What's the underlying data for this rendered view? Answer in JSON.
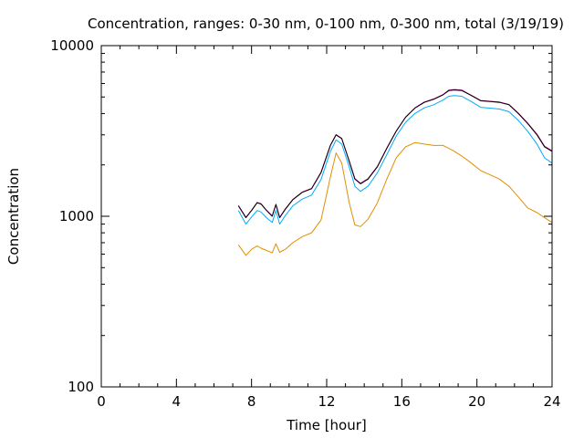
{
  "chart_data": {
    "type": "line",
    "title": "Concentration, ranges: 0-30 nm, 0-100 nm, 0-300 nm, total (3/19/19)",
    "xlabel": "Time [hour]",
    "ylabel": "Concentration",
    "xlim": [
      0,
      24
    ],
    "ylim": [
      100,
      10000
    ],
    "yscale": "log",
    "grid": false,
    "x_ticks": [
      0,
      4,
      8,
      12,
      16,
      20,
      24
    ],
    "x_tick_labels": [
      "0",
      "4",
      "8",
      "12",
      "16",
      "20",
      "24"
    ],
    "y_ticks": [
      100,
      1000,
      10000
    ],
    "y_tick_labels": [
      "100",
      "1000",
      "10000"
    ],
    "x": [
      7.3,
      7.7,
      8.0,
      8.3,
      8.5,
      8.8,
      9.1,
      9.3,
      9.5,
      9.8,
      10.2,
      10.7,
      11.2,
      11.7,
      12.2,
      12.5,
      12.8,
      13.2,
      13.5,
      13.8,
      14.2,
      14.7,
      15.2,
      15.7,
      16.2,
      16.7,
      17.2,
      17.7,
      18.2,
      18.5,
      18.8,
      19.2,
      19.7,
      20.2,
      20.7,
      21.2,
      21.7,
      22.2,
      22.7,
      23.2,
      23.6,
      24.0
    ],
    "series": [
      {
        "color": "#000000",
        "values": [
          1150,
          980,
          1080,
          1200,
          1180,
          1080,
          1000,
          1170,
          980,
          1100,
          1250,
          1380,
          1450,
          1800,
          2600,
          3000,
          2850,
          2100,
          1650,
          1550,
          1650,
          1950,
          2500,
          3150,
          3800,
          4300,
          4650,
          4850,
          5150,
          5450,
          5500,
          5450,
          5100,
          4750,
          4700,
          4650,
          4500,
          4000,
          3500,
          3000,
          2550,
          2400
        ]
      },
      {
        "color": "#cc0099",
        "values": [
          1155,
          985,
          1085,
          1205,
          1185,
          1085,
          1005,
          1175,
          985,
          1105,
          1255,
          1385,
          1455,
          1810,
          2610,
          3010,
          2860,
          2110,
          1660,
          1560,
          1660,
          1960,
          2510,
          3160,
          3810,
          4320,
          4670,
          4870,
          5170,
          5480,
          5530,
          5480,
          5120,
          4770,
          4720,
          4670,
          4520,
          4020,
          3520,
          3020,
          2570,
          2420
        ]
      },
      {
        "color": "#00aaff",
        "values": [
          1080,
          900,
          990,
          1080,
          1060,
          980,
          920,
          1080,
          900,
          1010,
          1150,
          1260,
          1330,
          1640,
          2400,
          2800,
          2650,
          1950,
          1500,
          1400,
          1500,
          1800,
          2300,
          2950,
          3550,
          4000,
          4320,
          4500,
          4800,
          5050,
          5100,
          5050,
          4700,
          4350,
          4300,
          4250,
          4100,
          3650,
          3150,
          2650,
          2200,
          2050
        ]
      },
      {
        "color": "#e09000",
        "values": [
          680,
          590,
          640,
          670,
          650,
          630,
          610,
          690,
          615,
          640,
          700,
          760,
          800,
          950,
          1700,
          2350,
          2050,
          1200,
          890,
          870,
          960,
          1200,
          1650,
          2200,
          2550,
          2700,
          2650,
          2600,
          2600,
          2500,
          2400,
          2250,
          2050,
          1850,
          1750,
          1650,
          1500,
          1300,
          1120,
          1050,
          980,
          920
        ]
      }
    ]
  }
}
